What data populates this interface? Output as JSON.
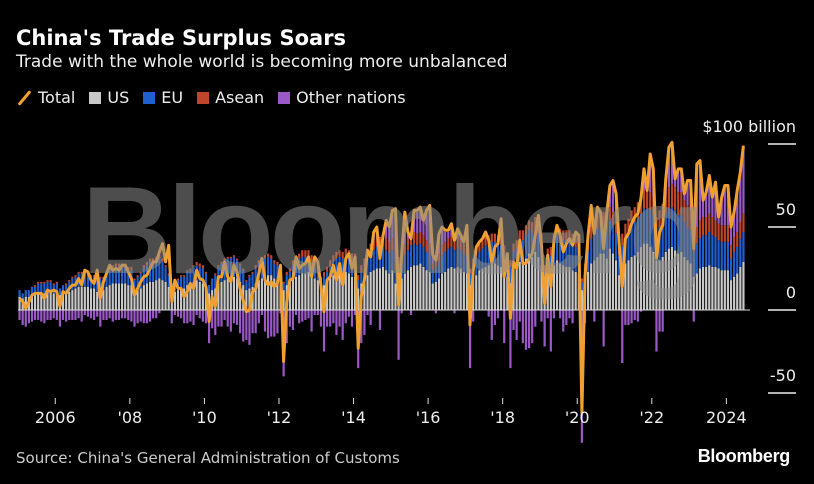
{
  "title": "China's Trade Surplus Soars",
  "subtitle": "Trade with the whole world is becoming more unbalanced",
  "source": "Source: China's General Administration of Customs",
  "logo": "Bloomberg",
  "watermark": "Bloomberg",
  "chart_data": {
    "type": "bar",
    "stacked": true,
    "overlay_line": "Total",
    "frequency": "monthly",
    "start": "2005-01",
    "end": "2024-06",
    "unit_label": "$100 billion",
    "ylim": [
      -60,
      100
    ],
    "y_ticks": [
      {
        "value": 100,
        "label": "$100 billion"
      },
      {
        "value": 50,
        "label": "50"
      },
      {
        "value": 0,
        "label": "0"
      },
      {
        "value": -50,
        "label": "-50"
      }
    ],
    "x_ticks": [
      {
        "year": 2006,
        "label": "2006"
      },
      {
        "year": 2008,
        "label": "'08"
      },
      {
        "year": 2010,
        "label": "'10"
      },
      {
        "year": 2012,
        "label": "'12"
      },
      {
        "year": 2014,
        "label": "'14"
      },
      {
        "year": 2016,
        "label": "'16"
      },
      {
        "year": 2018,
        "label": "'18"
      },
      {
        "year": 2020,
        "label": "'20"
      },
      {
        "year": 2022,
        "label": "'22"
      },
      {
        "year": 2024,
        "label": "2024"
      }
    ],
    "grid": false,
    "legend_placement": "top-left",
    "series": [
      {
        "name": "Total",
        "kind": "line",
        "color": "#f0a030",
        "values": [
          7,
          5,
          1,
          5,
          9,
          10,
          10,
          10,
          7,
          12,
          11,
          12,
          11,
          2,
          11,
          10,
          13,
          15,
          15,
          19,
          15,
          24,
          23,
          18,
          16,
          24,
          7,
          17,
          22,
          27,
          24,
          25,
          24,
          27,
          27,
          23,
          19,
          9,
          13,
          17,
          20,
          21,
          25,
          29,
          29,
          35,
          40,
          29,
          39,
          5,
          18,
          13,
          13,
          8,
          11,
          16,
          13,
          24,
          19,
          18,
          14,
          -7,
          8,
          2,
          20,
          20,
          29,
          20,
          17,
          27,
          23,
          13,
          6,
          -1,
          0,
          11,
          13,
          22,
          31,
          18,
          15,
          17,
          14,
          16,
          27,
          -31,
          5,
          18,
          19,
          32,
          25,
          27,
          28,
          32,
          20,
          32,
          29,
          15,
          -1,
          18,
          20,
          27,
          18,
          28,
          15,
          31,
          34,
          25,
          32,
          -23,
          8,
          18,
          36,
          32,
          47,
          50,
          31,
          45,
          54,
          50,
          60,
          61,
          3,
          34,
          59,
          47,
          43,
          60,
          60,
          62,
          54,
          60,
          63,
          33,
          30,
          46,
          50,
          48,
          48,
          52,
          42,
          49,
          45,
          41,
          51,
          -9,
          24,
          38,
          41,
          43,
          47,
          42,
          28,
          38,
          40,
          55,
          20,
          34,
          -5,
          29,
          25,
          42,
          28,
          28,
          31,
          34,
          45,
          57,
          39,
          4,
          33,
          14,
          42,
          51,
          45,
          35,
          40,
          43,
          39,
          47,
          45,
          -62,
          20,
          45,
          63,
          46,
          62,
          59,
          37,
          58,
          75,
          78,
          70,
          40,
          14,
          43,
          46,
          52,
          56,
          58,
          67,
          85,
          72,
          94,
          85,
          31,
          47,
          51,
          79,
          98,
          101,
          79,
          85,
          85,
          70,
          78,
          78,
          37,
          88,
          90,
          66,
          71,
          81,
          68,
          77,
          56,
          68,
          75,
          75,
          50,
          59,
          72,
          83,
          99
        ]
      },
      {
        "name": "US",
        "kind": "bar",
        "color": "#c8c8c8",
        "values": [
          8,
          7,
          8,
          8,
          9,
          9,
          10,
          10,
          10,
          11,
          11,
          10,
          11,
          9,
          10,
          10,
          11,
          12,
          13,
          14,
          14,
          14,
          14,
          13,
          13,
          11,
          12,
          12,
          14,
          15,
          16,
          16,
          16,
          16,
          16,
          15,
          15,
          11,
          12,
          13,
          15,
          16,
          17,
          17,
          18,
          19,
          18,
          17,
          14,
          11,
          11,
          12,
          13,
          13,
          15,
          16,
          17,
          18,
          17,
          16,
          14,
          10,
          12,
          13,
          16,
          17,
          18,
          19,
          19,
          20,
          19,
          17,
          15,
          12,
          13,
          14,
          16,
          18,
          19,
          20,
          21,
          21,
          19,
          18,
          16,
          12,
          15,
          16,
          19,
          20,
          21,
          22,
          22,
          23,
          21,
          19,
          18,
          14,
          15,
          17,
          19,
          21,
          22,
          22,
          22,
          23,
          22,
          20,
          20,
          13,
          16,
          18,
          21,
          23,
          24,
          25,
          25,
          26,
          24,
          22,
          24,
          16,
          17,
          19,
          22,
          24,
          26,
          27,
          27,
          28,
          26,
          24,
          23,
          16,
          17,
          19,
          22,
          23,
          25,
          26,
          25,
          26,
          25,
          23,
          22,
          15,
          18,
          21,
          24,
          25,
          26,
          27,
          28,
          28,
          27,
          26,
          22,
          20,
          16,
          24,
          25,
          29,
          28,
          31,
          34,
          32,
          35,
          32,
          27,
          15,
          21,
          21,
          27,
          30,
          28,
          27,
          26,
          26,
          24,
          23,
          22,
          12,
          14,
          23,
          28,
          30,
          32,
          34,
          34,
          31,
          37,
          34,
          30,
          21,
          25,
          28,
          30,
          32,
          33,
          35,
          38,
          40,
          40,
          38,
          35,
          30,
          30,
          32,
          35,
          37,
          38,
          36,
          34,
          35,
          32,
          30,
          28,
          20,
          22,
          25,
          26,
          26,
          27,
          26,
          26,
          25,
          24,
          24,
          24,
          18,
          20,
          22,
          26,
          29
        ]
      },
      {
        "name": "EU",
        "kind": "bar",
        "color": "#1f5fd0",
        "values": [
          4,
          3,
          4,
          4,
          5,
          5,
          6,
          6,
          6,
          6,
          6,
          5,
          5,
          4,
          5,
          5,
          6,
          7,
          7,
          8,
          8,
          8,
          8,
          7,
          7,
          6,
          7,
          7,
          8,
          9,
          9,
          10,
          10,
          10,
          10,
          9,
          9,
          7,
          8,
          9,
          10,
          11,
          12,
          12,
          12,
          12,
          11,
          9,
          7,
          5,
          6,
          6,
          7,
          7,
          8,
          8,
          9,
          9,
          9,
          9,
          8,
          5,
          7,
          8,
          10,
          11,
          12,
          12,
          12,
          12,
          11,
          10,
          9,
          5,
          7,
          8,
          9,
          10,
          11,
          11,
          11,
          10,
          9,
          9,
          8,
          4,
          6,
          7,
          8,
          9,
          10,
          10,
          10,
          9,
          8,
          8,
          7,
          4,
          5,
          6,
          7,
          8,
          9,
          10,
          9,
          9,
          9,
          9,
          9,
          5,
          7,
          8,
          10,
          11,
          12,
          13,
          12,
          12,
          12,
          12,
          12,
          8,
          9,
          10,
          11,
          12,
          13,
          13,
          12,
          12,
          12,
          11,
          11,
          8,
          9,
          10,
          11,
          12,
          12,
          12,
          11,
          11,
          11,
          11,
          11,
          7,
          9,
          10,
          11,
          12,
          13,
          13,
          13,
          13,
          13,
          13,
          12,
          9,
          10,
          11,
          12,
          13,
          14,
          14,
          14,
          14,
          14,
          14,
          13,
          8,
          11,
          12,
          13,
          15,
          15,
          15,
          15,
          15,
          15,
          15,
          14,
          5,
          10,
          13,
          15,
          16,
          17,
          17,
          17,
          17,
          17,
          17,
          16,
          12,
          14,
          16,
          17,
          19,
          20,
          20,
          20,
          21,
          21,
          22,
          22,
          17,
          20,
          21,
          23,
          24,
          24,
          24,
          23,
          22,
          21,
          20,
          20,
          15,
          18,
          18,
          19,
          19,
          20,
          19,
          18,
          17,
          17,
          17,
          17,
          13,
          15,
          16,
          17,
          18
        ]
      },
      {
        "name": "Asean",
        "kind": "bar",
        "color": "#c0462a",
        "values": [
          0,
          0,
          0,
          0,
          0,
          1,
          1,
          1,
          1,
          1,
          1,
          1,
          1,
          0,
          0,
          1,
          1,
          1,
          1,
          1,
          1,
          1,
          1,
          1,
          1,
          1,
          1,
          1,
          1,
          1,
          2,
          2,
          2,
          2,
          2,
          2,
          2,
          1,
          1,
          1,
          2,
          2,
          2,
          2,
          2,
          2,
          2,
          1,
          1,
          0,
          1,
          1,
          1,
          1,
          1,
          1,
          1,
          2,
          2,
          2,
          1,
          0,
          0,
          1,
          1,
          1,
          1,
          1,
          1,
          1,
          1,
          1,
          1,
          1,
          1,
          1,
          2,
          2,
          2,
          2,
          2,
          2,
          2,
          2,
          2,
          1,
          2,
          2,
          3,
          3,
          3,
          4,
          4,
          4,
          4,
          4,
          4,
          2,
          3,
          3,
          4,
          4,
          4,
          4,
          4,
          5,
          5,
          5,
          5,
          3,
          4,
          5,
          6,
          6,
          6,
          7,
          7,
          7,
          7,
          7,
          7,
          5,
          6,
          6,
          7,
          7,
          7,
          7,
          7,
          7,
          7,
          7,
          6,
          4,
          5,
          5,
          6,
          6,
          6,
          6,
          6,
          6,
          6,
          6,
          5,
          3,
          4,
          5,
          5,
          5,
          5,
          5,
          5,
          5,
          5,
          6,
          5,
          4,
          4,
          5,
          5,
          6,
          6,
          6,
          6,
          7,
          7,
          7,
          6,
          4,
          5,
          5,
          6,
          6,
          6,
          6,
          7,
          7,
          7,
          7,
          6,
          2,
          4,
          6,
          7,
          7,
          8,
          8,
          8,
          8,
          8,
          8,
          8,
          6,
          7,
          8,
          8,
          9,
          9,
          10,
          10,
          11,
          11,
          11,
          11,
          9,
          10,
          11,
          12,
          13,
          14,
          14,
          14,
          14,
          13,
          13,
          12,
          9,
          10,
          11,
          11,
          11,
          11,
          11,
          10,
          10,
          10,
          10,
          10,
          8,
          9,
          9,
          10,
          11
        ]
      },
      {
        "name": "Other nations",
        "kind": "bar",
        "color": "#9b59c7",
        "values": [
          -6,
          -9,
          -10,
          -8,
          -7,
          -6,
          -6,
          -7,
          -8,
          -6,
          -6,
          -5,
          -6,
          -10,
          -6,
          -7,
          -6,
          -6,
          -6,
          -5,
          -7,
          -3,
          -4,
          -5,
          -6,
          -4,
          -10,
          -6,
          -6,
          -5,
          -7,
          -6,
          -6,
          -5,
          -5,
          -6,
          -7,
          -10,
          -8,
          -7,
          -8,
          -8,
          -7,
          -5,
          -5,
          -2,
          0,
          0,
          0,
          -8,
          -3,
          -4,
          -5,
          -8,
          -8,
          -7,
          -9,
          -3,
          -5,
          -7,
          -8,
          -20,
          -11,
          -15,
          -10,
          -10,
          -6,
          -10,
          -13,
          -8,
          -9,
          -14,
          -19,
          -18,
          -21,
          -14,
          -14,
          -8,
          -3,
          -13,
          -17,
          -16,
          -16,
          -14,
          -2,
          -40,
          -20,
          -10,
          -12,
          -3,
          -8,
          -7,
          -6,
          -5,
          -13,
          -3,
          -3,
          -10,
          -25,
          -10,
          -10,
          -8,
          -15,
          -10,
          -18,
          -8,
          -4,
          -10,
          -3,
          -35,
          -20,
          -15,
          -3,
          -9,
          3,
          3,
          -12,
          0,
          9,
          8,
          15,
          30,
          -30,
          -2,
          18,
          4,
          -3,
          12,
          13,
          14,
          8,
          17,
          22,
          4,
          -2,
          10,
          10,
          6,
          4,
          7,
          -2,
          5,
          2,
          0,
          12,
          -35,
          -7,
          1,
          0,
          0,
          1,
          -4,
          -18,
          -9,
          -5,
          10,
          -20,
          0,
          -35,
          -12,
          -18,
          -7,
          -20,
          -24,
          -23,
          -20,
          -10,
          3,
          -7,
          -22,
          -5,
          -25,
          -5,
          0,
          -5,
          -13,
          -9,
          -5,
          -8,
          2,
          3,
          -80,
          -8,
          3,
          13,
          -7,
          5,
          0,
          -22,
          2,
          13,
          19,
          16,
          0,
          -32,
          -9,
          -9,
          -8,
          -6,
          -7,
          -1,
          13,
          0,
          23,
          17,
          -25,
          -13,
          -13,
          9,
          24,
          25,
          5,
          14,
          14,
          4,
          15,
          18,
          -7,
          38,
          36,
          10,
          15,
          23,
          12,
          23,
          4,
          17,
          24,
          24,
          11,
          15,
          25,
          30,
          41
        ]
      }
    ]
  }
}
